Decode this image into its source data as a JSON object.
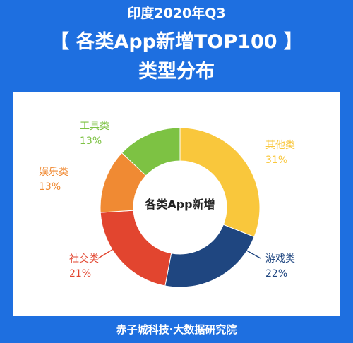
{
  "header": {
    "line1": "印度2020年Q3",
    "line2": "【 各类App新增TOP100 】",
    "line3": "类型分布"
  },
  "footer": {
    "text": "赤子城科技·大数据研究院"
  },
  "chart_data": {
    "type": "pie",
    "donut": true,
    "center_label": "各类App新增",
    "slices": [
      {
        "label": "其他类",
        "value": 31,
        "value_label": "31%",
        "color": "#f9c73c"
      },
      {
        "label": "游戏类",
        "value": 22,
        "value_label": "22%",
        "color": "#1f4680"
      },
      {
        "label": "社交类",
        "value": 21,
        "value_label": "21%",
        "color": "#e2452f"
      },
      {
        "label": "娱乐类",
        "value": 13,
        "value_label": "13%",
        "color": "#f08a33"
      },
      {
        "label": "工具类",
        "value": 13,
        "value_label": "13%",
        "color": "#7dc243"
      }
    ]
  }
}
